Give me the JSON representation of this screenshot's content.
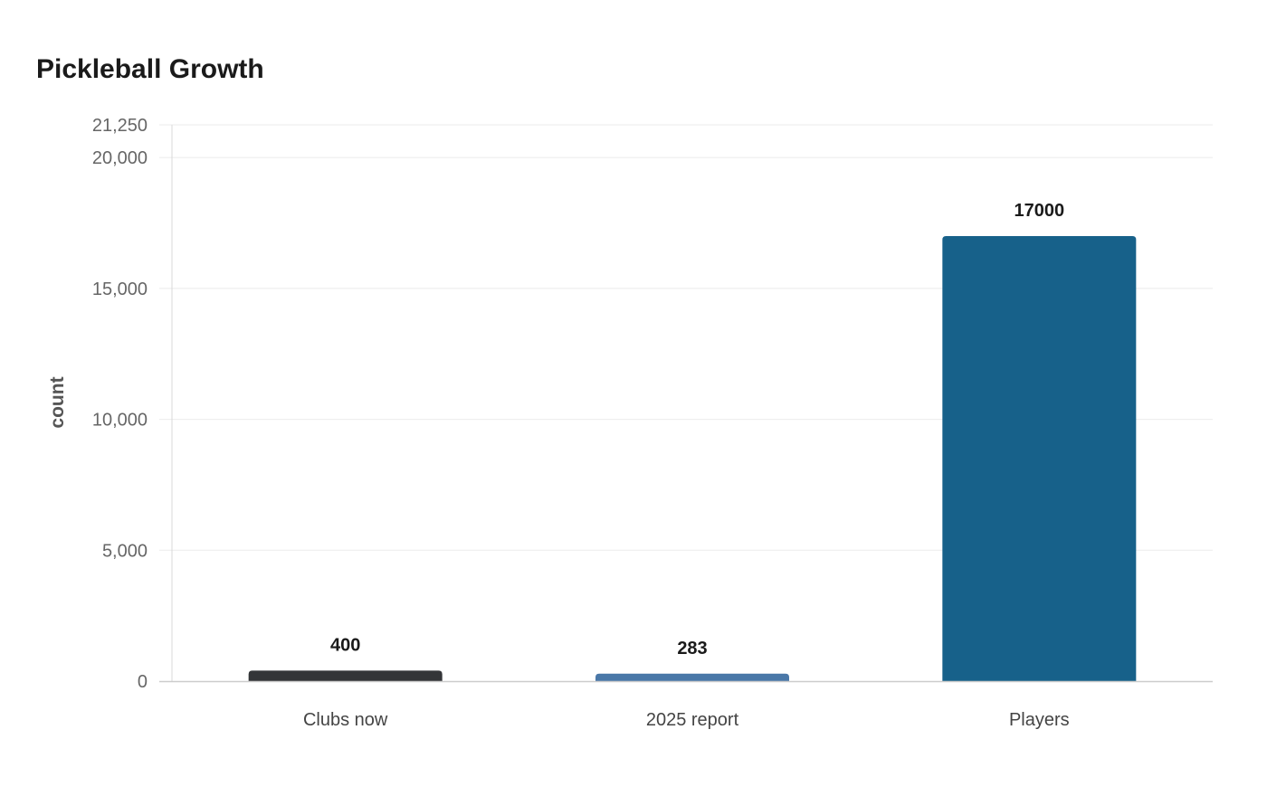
{
  "chart_data": {
    "type": "bar",
    "title": "Pickleball Growth",
    "xlabel": "",
    "ylabel": "count",
    "categories": [
      "Clubs now",
      "2025 report",
      "Players"
    ],
    "values": [
      400,
      283,
      17000
    ],
    "data_labels": [
      "400",
      "283",
      "17000"
    ],
    "colors": [
      "#333538",
      "#4a78a8",
      "#17618a"
    ],
    "ylim": [
      0,
      21250
    ],
    "yticks": [
      0,
      5000,
      10000,
      15000,
      20000,
      21250
    ],
    "ytick_labels": [
      "0",
      "5,000",
      "10,000",
      "15,000",
      "20,000",
      "21,250"
    ],
    "grid": true,
    "legend": "none"
  }
}
